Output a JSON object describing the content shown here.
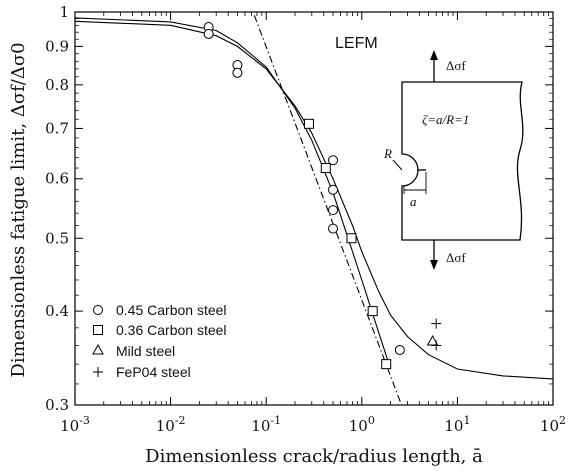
{
  "chart_data": {
    "type": "scatter",
    "title": "",
    "xlabel": "Dimensionless crack/radius length, ā",
    "ylabel": "Dimensionless fatigue limit, Δσf/Δσ0",
    "xscale": "log",
    "yscale": "log",
    "xlim": [
      0.001,
      100
    ],
    "ylim": [
      0.3,
      1.0
    ],
    "x_ticks": [
      {
        "value": 0.001,
        "base": "10",
        "exp": "-3"
      },
      {
        "value": 0.01,
        "base": "10",
        "exp": "-2"
      },
      {
        "value": 0.1,
        "base": "10",
        "exp": "-1"
      },
      {
        "value": 1,
        "base": "10",
        "exp": "0"
      },
      {
        "value": 10,
        "base": "10",
        "exp": "1"
      },
      {
        "value": 100,
        "base": "10",
        "exp": "2"
      }
    ],
    "y_ticks": [
      {
        "value": 0.3,
        "label": "0.3"
      },
      {
        "value": 0.4,
        "label": "0.4"
      },
      {
        "value": 0.5,
        "label": "0.5"
      },
      {
        "value": 0.6,
        "label": "0.6"
      },
      {
        "value": 0.7,
        "label": "0.7"
      },
      {
        "value": 0.8,
        "label": "0.8"
      },
      {
        "value": 0.9,
        "label": "0.9"
      },
      {
        "value": 1.0,
        "label": "1"
      }
    ],
    "series": [
      {
        "name": "0.45 Carbon steel",
        "marker": "circle",
        "points": [
          [
            0.025,
            0.955
          ],
          [
            0.025,
            0.935
          ],
          [
            0.05,
            0.85
          ],
          [
            0.05,
            0.83
          ],
          [
            0.5,
            0.635
          ],
          [
            0.5,
            0.58
          ],
          [
            0.5,
            0.545
          ],
          [
            0.5,
            0.515
          ],
          [
            2.5,
            0.355
          ]
        ]
      },
      {
        "name": "0.36 Carbon steel",
        "marker": "square",
        "points": [
          [
            0.28,
            0.71
          ],
          [
            0.42,
            0.62
          ],
          [
            0.78,
            0.5
          ],
          [
            1.3,
            0.4
          ],
          [
            1.8,
            0.34
          ]
        ]
      },
      {
        "name": "Mild steel",
        "marker": "triangle",
        "points": [
          [
            5.5,
            0.365
          ]
        ]
      },
      {
        "name": "FeP04 steel",
        "marker": "plus",
        "points": [
          [
            6.0,
            0.385
          ],
          [
            6.0,
            0.36
          ]
        ]
      }
    ],
    "curves": [
      {
        "style": "solid",
        "points": [
          [
            0.001,
            0.972
          ],
          [
            0.01,
            0.96
          ],
          [
            0.03,
            0.93
          ],
          [
            0.05,
            0.9
          ],
          [
            0.1,
            0.84
          ],
          [
            0.2,
            0.75
          ],
          [
            0.3,
            0.69
          ],
          [
            0.5,
            0.6
          ],
          [
            0.8,
            0.52
          ],
          [
            1.0,
            0.48
          ],
          [
            1.5,
            0.425
          ],
          [
            2.0,
            0.395
          ],
          [
            3.0,
            0.37
          ],
          [
            5.0,
            0.35
          ],
          [
            10,
            0.335
          ],
          [
            30,
            0.328
          ],
          [
            100,
            0.325
          ]
        ]
      },
      {
        "style": "solid",
        "points": [
          [
            0.001,
            0.982
          ],
          [
            0.01,
            0.97
          ],
          [
            0.03,
            0.945
          ],
          [
            0.05,
            0.91
          ],
          [
            0.1,
            0.845
          ],
          [
            0.2,
            0.745
          ],
          [
            0.3,
            0.675
          ],
          [
            0.5,
            0.575
          ],
          [
            0.8,
            0.48
          ],
          [
            1.0,
            0.44
          ],
          [
            1.5,
            0.375
          ],
          [
            2.0,
            0.335
          ]
        ]
      },
      {
        "style": "dashdot",
        "points": [
          [
            0.075,
            0.99
          ],
          [
            2.6,
            0.3
          ]
        ]
      }
    ],
    "legend_placement": "bottom-left",
    "grid": false,
    "annotations": {
      "lefm": "LEFM",
      "inset_stress": "Δσf",
      "inset_ratio": "ζ=a/R=1",
      "inset_R": "R",
      "inset_a": "a"
    }
  }
}
